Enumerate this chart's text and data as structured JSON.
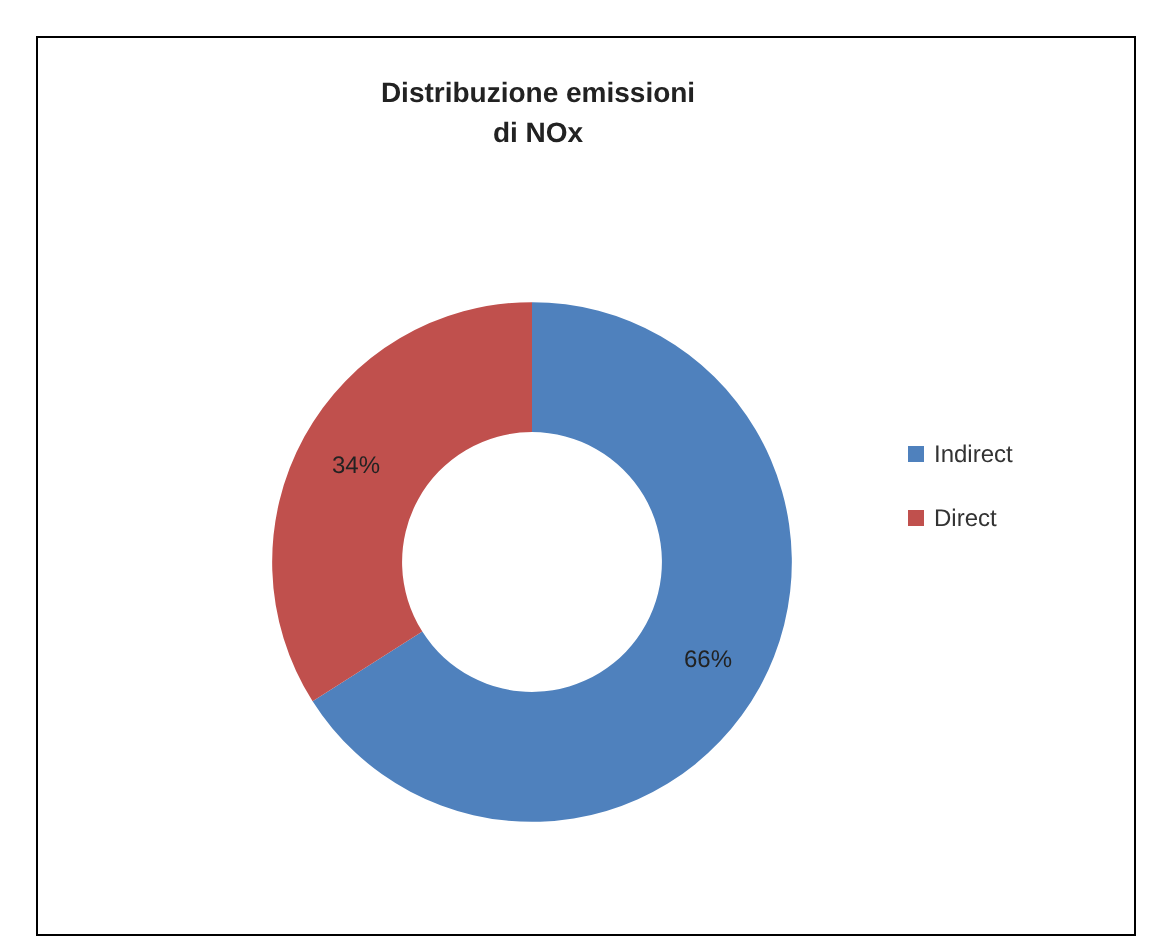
{
  "chart_data": {
    "type": "donut",
    "title": "Distribuzione emissioni\ndi NOx",
    "categories": [
      "Indirect",
      "Direct"
    ],
    "values": [
      66,
      34
    ],
    "colors": [
      "#4f81bd",
      "#c0504d"
    ],
    "value_labels": [
      "66%",
      "34%"
    ],
    "legend": "right"
  }
}
